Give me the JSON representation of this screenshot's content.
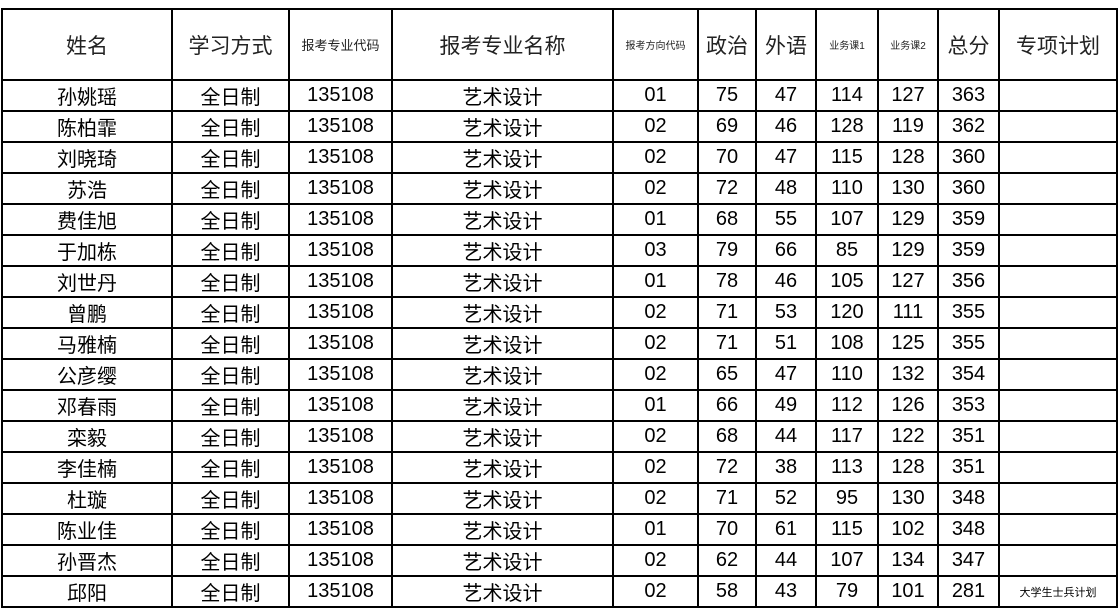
{
  "headers": [
    "姓名",
    "学习方式",
    "报考专业代码",
    "报考专业名称",
    "报考方向代码",
    "政治",
    "外语",
    "业务课1",
    "业务课2",
    "总分",
    "专项计划"
  ],
  "rows": [
    [
      "孙姚瑶",
      "全日制",
      "135108",
      "艺术设计",
      "01",
      "75",
      "47",
      "114",
      "127",
      "363",
      ""
    ],
    [
      "陈柏霏",
      "全日制",
      "135108",
      "艺术设计",
      "02",
      "69",
      "46",
      "128",
      "119",
      "362",
      ""
    ],
    [
      "刘晓琦",
      "全日制",
      "135108",
      "艺术设计",
      "02",
      "70",
      "47",
      "115",
      "128",
      "360",
      ""
    ],
    [
      "苏浩",
      "全日制",
      "135108",
      "艺术设计",
      "02",
      "72",
      "48",
      "110",
      "130",
      "360",
      ""
    ],
    [
      "费佳旭",
      "全日制",
      "135108",
      "艺术设计",
      "01",
      "68",
      "55",
      "107",
      "129",
      "359",
      ""
    ],
    [
      "于加栋",
      "全日制",
      "135108",
      "艺术设计",
      "03",
      "79",
      "66",
      "85",
      "129",
      "359",
      ""
    ],
    [
      "刘世丹",
      "全日制",
      "135108",
      "艺术设计",
      "01",
      "78",
      "46",
      "105",
      "127",
      "356",
      ""
    ],
    [
      "曾鹏",
      "全日制",
      "135108",
      "艺术设计",
      "02",
      "71",
      "53",
      "120",
      "111",
      "355",
      ""
    ],
    [
      "马雅楠",
      "全日制",
      "135108",
      "艺术设计",
      "02",
      "71",
      "51",
      "108",
      "125",
      "355",
      ""
    ],
    [
      "公彦缨",
      "全日制",
      "135108",
      "艺术设计",
      "02",
      "65",
      "47",
      "110",
      "132",
      "354",
      ""
    ],
    [
      "邓春雨",
      "全日制",
      "135108",
      "艺术设计",
      "01",
      "66",
      "49",
      "112",
      "126",
      "353",
      ""
    ],
    [
      "栾毅",
      "全日制",
      "135108",
      "艺术设计",
      "02",
      "68",
      "44",
      "117",
      "122",
      "351",
      ""
    ],
    [
      "李佳楠",
      "全日制",
      "135108",
      "艺术设计",
      "02",
      "72",
      "38",
      "113",
      "128",
      "351",
      ""
    ],
    [
      "杜璇",
      "全日制",
      "135108",
      "艺术设计",
      "02",
      "71",
      "52",
      "95",
      "130",
      "348",
      ""
    ],
    [
      "陈业佳",
      "全日制",
      "135108",
      "艺术设计",
      "01",
      "70",
      "61",
      "115",
      "102",
      "348",
      ""
    ],
    [
      "孙晋杰",
      "全日制",
      "135108",
      "艺术设计",
      "02",
      "62",
      "44",
      "107",
      "134",
      "347",
      ""
    ],
    [
      "邱阳",
      "全日制",
      "135108",
      "艺术设计",
      "02",
      "58",
      "43",
      "79",
      "101",
      "281",
      "大学生士兵计划"
    ]
  ]
}
